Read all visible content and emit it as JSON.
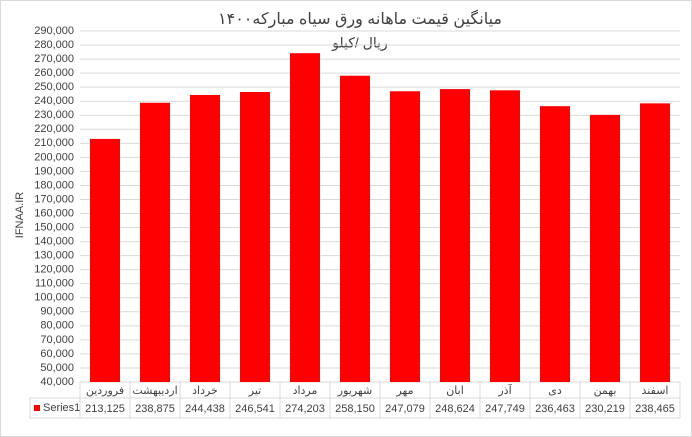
{
  "chart_data": {
    "type": "bar",
    "title": "میانگین قیمت ماهانه ورق سیاه مبارکه۱۴۰۰",
    "subtitle": "ریال /کیلو",
    "y_label": "IFNAA.IR",
    "categories": [
      "فروردین",
      "اردیبهشت",
      "خرداد",
      "تیر",
      "مرداد",
      "شهریور",
      "مهر",
      "ابان",
      "آذر",
      "دی",
      "بهمن",
      "اسفند"
    ],
    "series": [
      {
        "name": "Series1",
        "color": "#ff0000",
        "values": [
          213125,
          238875,
          244438,
          246541,
          274203,
          258150,
          247079,
          248624,
          247749,
          236463,
          230219,
          238465
        ],
        "value_labels": [
          "213,125",
          "238,875",
          "244,438",
          "246,541",
          "274,203",
          "258,150",
          "247,079",
          "248,624",
          "247,749",
          "236,463",
          "230,219",
          "238,465"
        ]
      }
    ],
    "ylim": [
      40000,
      290000
    ],
    "yticks": [
      {
        "value": 40000,
        "label": "40,000"
      },
      {
        "value": 50000,
        "label": "50,000"
      },
      {
        "value": 60000,
        "label": "60,000"
      },
      {
        "value": 70000,
        "label": "70,000"
      },
      {
        "value": 80000,
        "label": "80,000"
      },
      {
        "value": 90000,
        "label": "90,000"
      },
      {
        "value": 100000,
        "label": "100,000"
      },
      {
        "value": 110000,
        "label": "110,000"
      },
      {
        "value": 120000,
        "label": "120,000"
      },
      {
        "value": 130000,
        "label": "130,000"
      },
      {
        "value": 140000,
        "label": "140,000"
      },
      {
        "value": 150000,
        "label": "150,000"
      },
      {
        "value": 160000,
        "label": "160,000"
      },
      {
        "value": 170000,
        "label": "170,000"
      },
      {
        "value": 180000,
        "label": "180,000"
      },
      {
        "value": 190000,
        "label": "190,000"
      },
      {
        "value": 200000,
        "label": "200,000"
      },
      {
        "value": 210000,
        "label": "210,000"
      },
      {
        "value": 220000,
        "label": "220,000"
      },
      {
        "value": 230000,
        "label": "230,000"
      },
      {
        "value": 240000,
        "label": "240,000"
      },
      {
        "value": 250000,
        "label": "250,000"
      },
      {
        "value": 260000,
        "label": "260,000"
      },
      {
        "value": 270000,
        "label": "270,000"
      },
      {
        "value": 280000,
        "label": "280,000"
      },
      {
        "value": 290000,
        "label": "290,000"
      }
    ],
    "grid": true
  }
}
